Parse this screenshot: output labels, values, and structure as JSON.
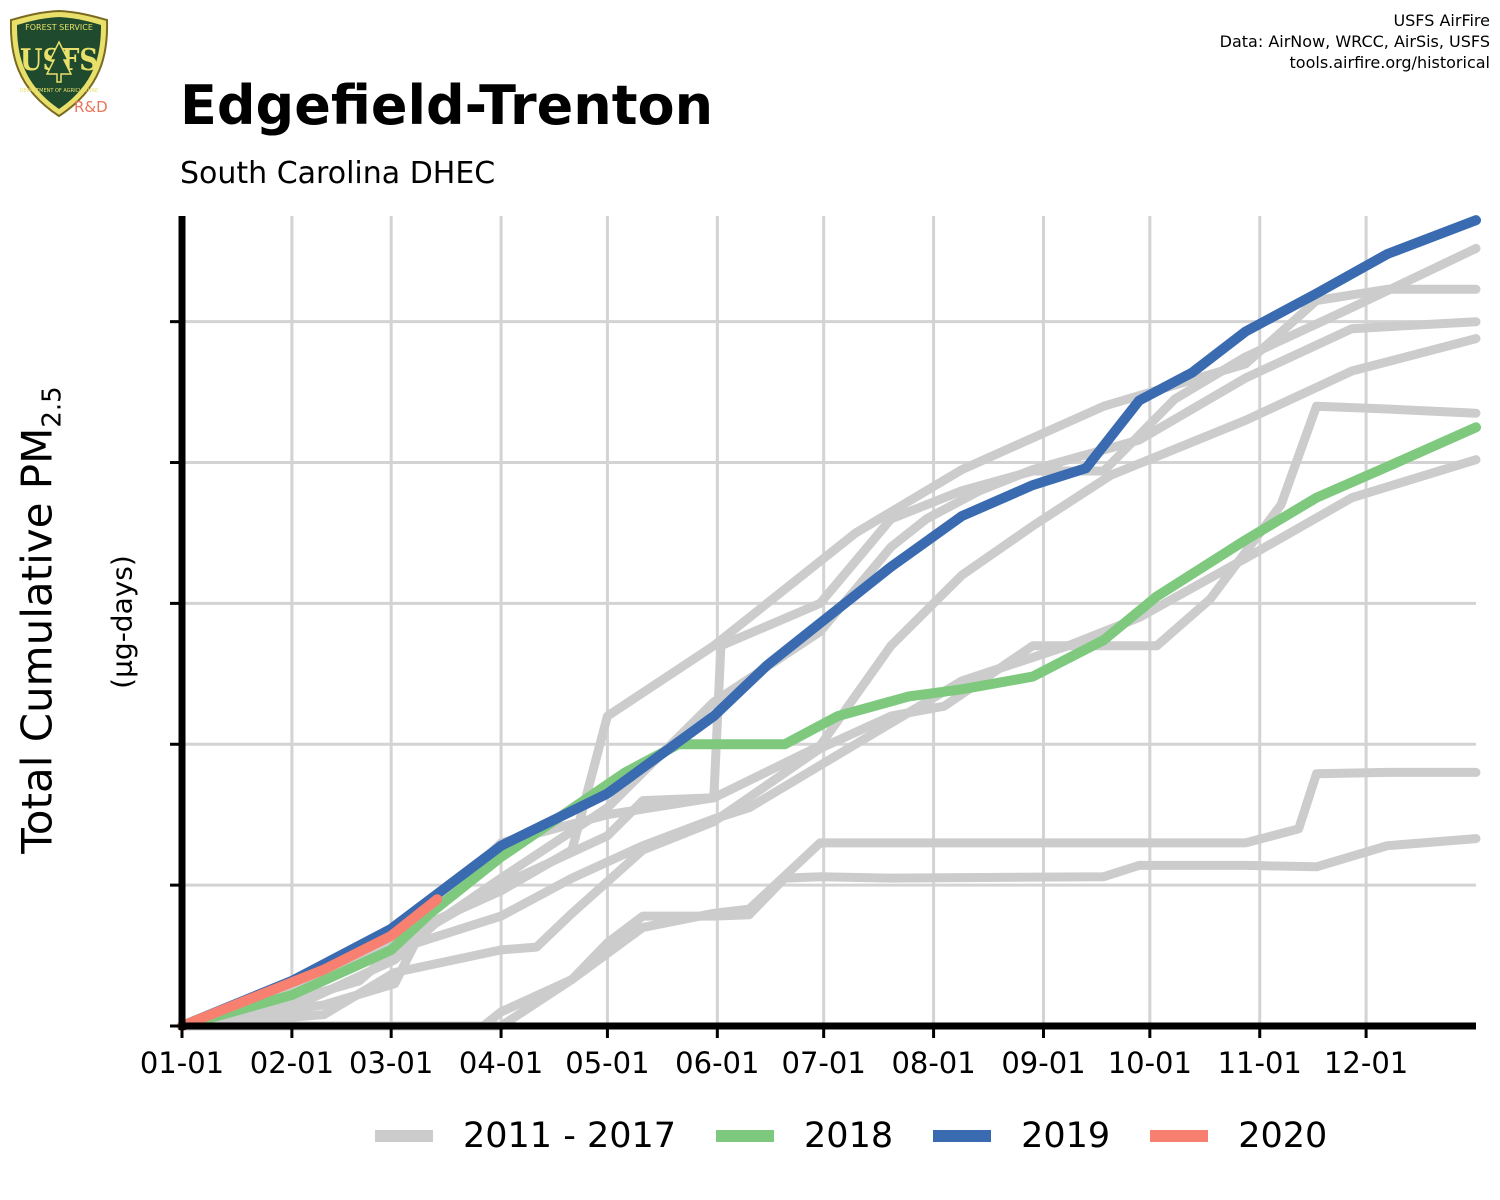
{
  "header": {
    "title": "Edgefield-Trenton",
    "subtitle": "South Carolina DHEC",
    "credits": [
      "USFS AirFire",
      "Data: AirNow, WRCC, AirSis, USFS",
      "tools.airfire.org/historical"
    ],
    "logo": {
      "top_text": "FOREST SERVICE",
      "letters": "USFS",
      "bottom_text": "DEPARTMENT OF AGRICULTURE",
      "tag": "R&D"
    }
  },
  "chart_data": {
    "type": "line",
    "title": "Edgefield-Trenton",
    "subtitle": "South Carolina DHEC",
    "ylabel": "Total Cumulative PM",
    "ylabel_subscript": "2.5",
    "ylabel_units": "(µg-days)",
    "xlabel": "",
    "x_tick_labels": [
      "01-01",
      "02-01",
      "03-01",
      "04-01",
      "05-01",
      "06-01",
      "07-01",
      "08-01",
      "09-01",
      "10-01",
      "11-01",
      "12-01"
    ],
    "x_tick_days": [
      0,
      31,
      59,
      90,
      120,
      151,
      181,
      212,
      243,
      273,
      304,
      334
    ],
    "xlim": [
      0,
      365
    ],
    "ylim": [
      0,
      5750
    ],
    "y_gridlines": [
      0,
      1000,
      2000,
      3000,
      4000,
      5000
    ],
    "y_tick_labels_shown": false,
    "grid": true,
    "legend": {
      "position": "bottom",
      "entries": [
        "2011 - 2017",
        "2018",
        "2019",
        "2020"
      ]
    },
    "colors": {
      "background_years": "#cccccc",
      "2018": "#7fc97f",
      "2019": "#3a6bb0",
      "2020": "#f88070"
    },
    "series": [
      {
        "group": "2011 - 2017",
        "points": [
          [
            0,
            0
          ],
          [
            30,
            220
          ],
          [
            60,
            560
          ],
          [
            90,
            1000
          ],
          [
            120,
            1350
          ],
          [
            130,
            1600
          ],
          [
            150,
            1620
          ],
          [
            152,
            2700
          ],
          [
            180,
            3000
          ],
          [
            200,
            3600
          ],
          [
            220,
            3800
          ],
          [
            240,
            3940
          ],
          [
            260,
            3940
          ],
          [
            280,
            4450
          ],
          [
            300,
            4750
          ],
          [
            330,
            5100
          ],
          [
            365,
            5520
          ]
        ]
      },
      {
        "group": "2011 - 2017",
        "points": [
          [
            0,
            0
          ],
          [
            30,
            250
          ],
          [
            60,
            620
          ],
          [
            90,
            960
          ],
          [
            110,
            1250
          ],
          [
            120,
            2200
          ],
          [
            150,
            2700
          ],
          [
            190,
            3500
          ],
          [
            220,
            3950
          ],
          [
            260,
            4400
          ],
          [
            300,
            4700
          ],
          [
            320,
            5150
          ],
          [
            340,
            5230
          ],
          [
            365,
            5230
          ]
        ]
      },
      {
        "group": "2011 - 2017",
        "points": [
          [
            0,
            0
          ],
          [
            30,
            120
          ],
          [
            60,
            470
          ],
          [
            72,
            740
          ],
          [
            90,
            1050
          ],
          [
            120,
            1550
          ],
          [
            150,
            2300
          ],
          [
            180,
            2800
          ],
          [
            200,
            3400
          ],
          [
            210,
            3600
          ],
          [
            225,
            3800
          ],
          [
            240,
            3950
          ],
          [
            270,
            4160
          ],
          [
            300,
            4600
          ],
          [
            330,
            4950
          ],
          [
            365,
            5000
          ]
        ]
      },
      {
        "group": "2011 - 2017",
        "points": [
          [
            0,
            0
          ],
          [
            40,
            150
          ],
          [
            60,
            300
          ],
          [
            70,
            800
          ],
          [
            90,
            1300
          ],
          [
            120,
            1500
          ],
          [
            150,
            1620
          ],
          [
            180,
            1990
          ],
          [
            200,
            2700
          ],
          [
            220,
            3200
          ],
          [
            240,
            3550
          ],
          [
            262,
            3910
          ],
          [
            300,
            4300
          ],
          [
            330,
            4650
          ],
          [
            365,
            4880
          ]
        ]
      },
      {
        "group": "2011 - 2017",
        "points": [
          [
            0,
            0
          ],
          [
            20,
            100
          ],
          [
            50,
            320
          ],
          [
            60,
            540
          ],
          [
            90,
            780
          ],
          [
            110,
            1050
          ],
          [
            130,
            1280
          ],
          [
            150,
            1470
          ],
          [
            160,
            1550
          ],
          [
            180,
            1850
          ],
          [
            200,
            2150
          ],
          [
            220,
            2450
          ],
          [
            250,
            2700
          ],
          [
            270,
            2900
          ],
          [
            300,
            3320
          ],
          [
            330,
            3750
          ],
          [
            365,
            4020
          ]
        ]
      },
      {
        "group": "2011 - 2017",
        "points": [
          [
            0,
            0
          ],
          [
            40,
            80
          ],
          [
            60,
            380
          ],
          [
            90,
            540
          ],
          [
            100,
            560
          ],
          [
            110,
            800
          ],
          [
            130,
            1250
          ],
          [
            150,
            1450
          ],
          [
            180,
            1970
          ],
          [
            200,
            2200
          ],
          [
            215,
            2270
          ],
          [
            240,
            2700
          ],
          [
            260,
            2700
          ],
          [
            275,
            2700
          ],
          [
            290,
            3030
          ],
          [
            310,
            3700
          ],
          [
            320,
            4400
          ],
          [
            340,
            4380
          ],
          [
            365,
            4350
          ]
        ]
      },
      {
        "group": "2011 - 2017",
        "points": [
          [
            0,
            0
          ],
          [
            60,
            0
          ],
          [
            85,
            0
          ],
          [
            90,
            100
          ],
          [
            110,
            330
          ],
          [
            130,
            700
          ],
          [
            150,
            800
          ],
          [
            160,
            830
          ],
          [
            180,
            1300
          ],
          [
            210,
            1300
          ],
          [
            250,
            1300
          ],
          [
            270,
            1300
          ],
          [
            300,
            1300
          ],
          [
            315,
            1400
          ],
          [
            320,
            1790
          ],
          [
            340,
            1800
          ],
          [
            365,
            1800
          ]
        ]
      },
      {
        "group": "2011 - 2017",
        "points": [
          [
            0,
            0
          ],
          [
            60,
            0
          ],
          [
            90,
            0
          ],
          [
            110,
            330
          ],
          [
            120,
            590
          ],
          [
            130,
            780
          ],
          [
            150,
            780
          ],
          [
            160,
            790
          ],
          [
            170,
            1050
          ],
          [
            180,
            1060
          ],
          [
            200,
            1050
          ],
          [
            260,
            1060
          ],
          [
            270,
            1140
          ],
          [
            300,
            1140
          ],
          [
            320,
            1130
          ],
          [
            340,
            1280
          ],
          [
            365,
            1330
          ]
        ]
      },
      {
        "group": "2018",
        "points": [
          [
            0,
            0
          ],
          [
            31,
            220
          ],
          [
            59,
            540
          ],
          [
            70,
            800
          ],
          [
            90,
            1200
          ],
          [
            125,
            1800
          ],
          [
            140,
            2000
          ],
          [
            170,
            2000
          ],
          [
            185,
            2200
          ],
          [
            205,
            2340
          ],
          [
            220,
            2390
          ],
          [
            240,
            2480
          ],
          [
            260,
            2740
          ],
          [
            275,
            3050
          ],
          [
            300,
            3450
          ],
          [
            320,
            3750
          ],
          [
            340,
            3970
          ],
          [
            365,
            4250
          ]
        ]
      },
      {
        "group": "2019",
        "points": [
          [
            0,
            0
          ],
          [
            31,
            320
          ],
          [
            59,
            690
          ],
          [
            90,
            1280
          ],
          [
            120,
            1650
          ],
          [
            150,
            2200
          ],
          [
            165,
            2560
          ],
          [
            180,
            2860
          ],
          [
            200,
            3260
          ],
          [
            220,
            3620
          ],
          [
            240,
            3840
          ],
          [
            255,
            3960
          ],
          [
            270,
            4440
          ],
          [
            285,
            4640
          ],
          [
            300,
            4930
          ],
          [
            320,
            5200
          ],
          [
            340,
            5480
          ],
          [
            365,
            5720
          ]
        ]
      },
      {
        "group": "2020",
        "points": [
          [
            0,
            0
          ],
          [
            20,
            200
          ],
          [
            40,
            400
          ],
          [
            59,
            640
          ],
          [
            72,
            900
          ]
        ]
      }
    ]
  }
}
